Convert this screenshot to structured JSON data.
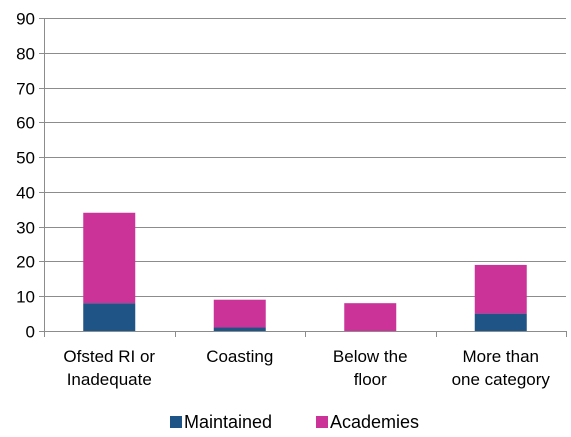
{
  "chart_data": {
    "type": "bar",
    "stacked": true,
    "title": "",
    "xlabel": "",
    "ylabel": "",
    "ylim": [
      0,
      90
    ],
    "yticks": [
      0,
      10,
      20,
      30,
      40,
      50,
      60,
      70,
      80,
      90
    ],
    "grid": true,
    "legend_position": "bottom",
    "categories": [
      [
        "Ofsted RI or",
        "Inadequate"
      ],
      [
        "Coasting"
      ],
      [
        "Below the",
        "floor"
      ],
      [
        "More than",
        "one category"
      ]
    ],
    "series": [
      {
        "name": "Maintained",
        "color": "#1f5486",
        "values": [
          8,
          1,
          0,
          5
        ]
      },
      {
        "name": "Academies",
        "color": "#cc3399",
        "values": [
          26,
          8,
          8,
          14
        ]
      }
    ]
  }
}
